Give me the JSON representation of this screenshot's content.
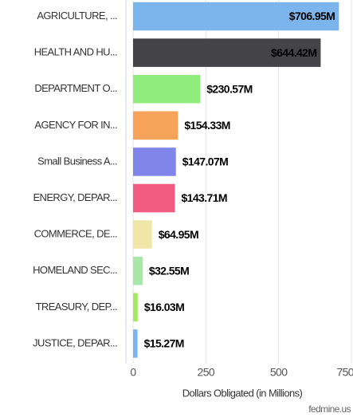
{
  "chart_data": {
    "type": "bar",
    "orientation": "horizontal",
    "categories": [
      "AGRICULTURE, ...",
      "HEALTH AND HU...",
      "DEPARTMENT O...",
      "AGENCY FOR IN...",
      "Small Business A...",
      "ENERGY, DEPAR...",
      "COMMERCE, DE...",
      "HOMELAND SEC...",
      "TREASURY, DEP...",
      "JUSTICE, DEPAR..."
    ],
    "values": [
      706.95,
      644.42,
      230.57,
      154.33,
      147.07,
      143.71,
      64.95,
      32.55,
      16.03,
      15.27
    ],
    "value_labels": [
      "$706.95M",
      "$644.42M",
      "$230.57M",
      "$154.33M",
      "$147.07M",
      "$143.71M",
      "$64.95M",
      "$32.55M",
      "$16.03M",
      "$15.27M"
    ],
    "colors": [
      "#7cb5ec",
      "#434348",
      "#90ed7d",
      "#f7a35c",
      "#8085e9",
      "#f15c80",
      "#f0e6a8",
      "#a9e6a9",
      "#a8e85e",
      "#7cb5ec"
    ],
    "xlim": [
      0,
      750
    ],
    "xticks": [
      0,
      250,
      500,
      750
    ],
    "grid": true,
    "x_label": "Dollars Obligated (in Millions)",
    "credit": "fedmine.us"
  }
}
